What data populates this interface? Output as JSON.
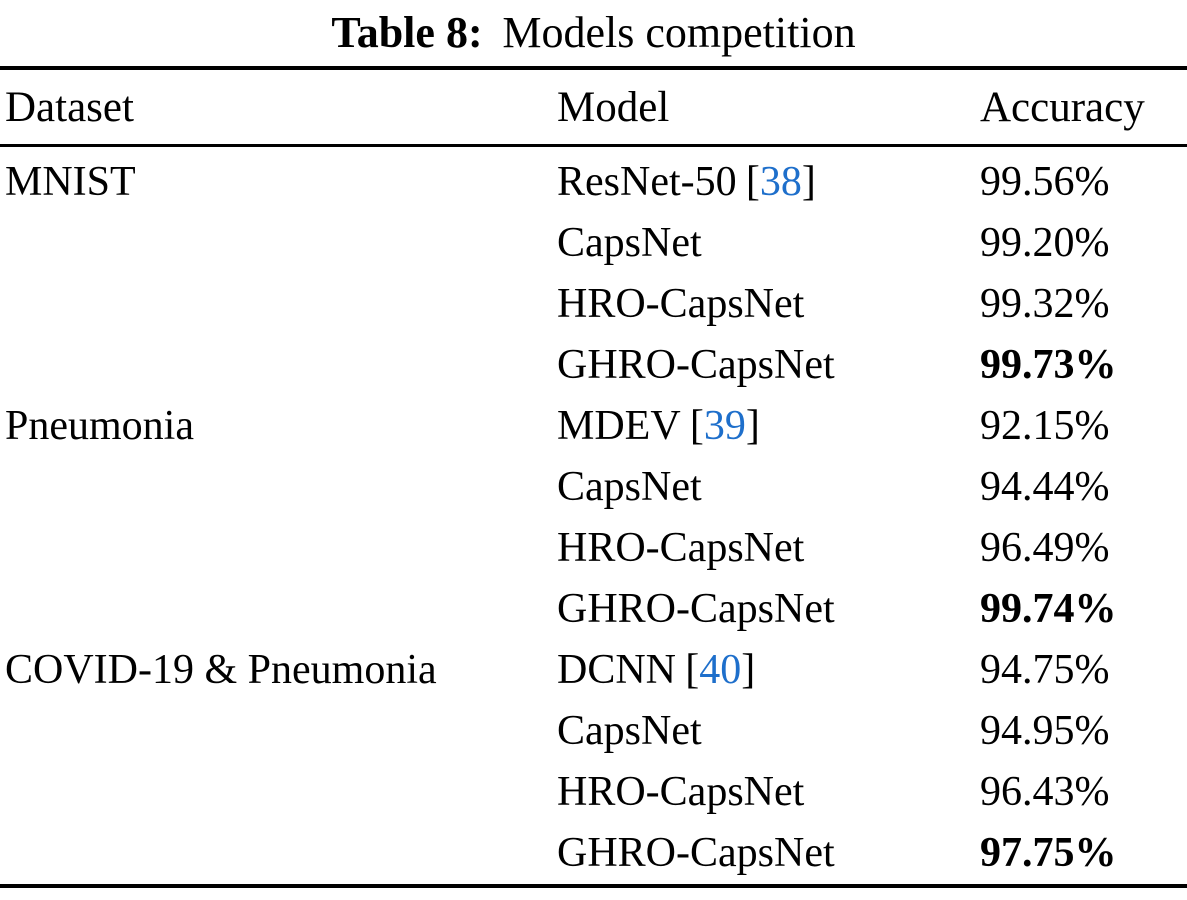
{
  "title": {
    "label": "Table 8:",
    "caption": "Models competition"
  },
  "table": {
    "columns": {
      "dataset": "Dataset",
      "model": "Model",
      "accuracy": "Accuracy"
    },
    "cite_open": "[",
    "cite_close": "]",
    "rows": [
      {
        "dataset": "MNIST",
        "model": "ResNet-50",
        "citation": "38",
        "accuracy": "99.56%"
      },
      {
        "dataset": "",
        "model": "CapsNet",
        "citation": "",
        "accuracy": "99.20%"
      },
      {
        "dataset": "",
        "model": "HRO-CapsNet",
        "citation": "",
        "accuracy": "99.32%"
      },
      {
        "dataset": "",
        "model": "GHRO-CapsNet",
        "citation": "",
        "accuracy": "99.73%"
      },
      {
        "dataset": "Pneumonia",
        "model": "MDEV",
        "citation": "39",
        "accuracy": "92.15%"
      },
      {
        "dataset": "",
        "model": "CapsNet",
        "citation": "",
        "accuracy": "94.44%"
      },
      {
        "dataset": "",
        "model": "HRO-CapsNet",
        "citation": "",
        "accuracy": "96.49%"
      },
      {
        "dataset": "",
        "model": "GHRO-CapsNet",
        "citation": "",
        "accuracy": "99.74%"
      },
      {
        "dataset": "COVID-19 & Pneumonia",
        "model": "DCNN",
        "citation": "40",
        "accuracy": "94.75%"
      },
      {
        "dataset": "",
        "model": "CapsNet",
        "citation": "",
        "accuracy": "94.95%"
      },
      {
        "dataset": "",
        "model": "HRO-CapsNet",
        "citation": "",
        "accuracy": "96.43%"
      },
      {
        "dataset": "",
        "model": "GHRO-CapsNet",
        "citation": "",
        "accuracy": "97.75%"
      }
    ]
  },
  "colors": {
    "citation_blue": "#1E6FCB",
    "text": "#000000",
    "background": "#FFFFFF"
  }
}
